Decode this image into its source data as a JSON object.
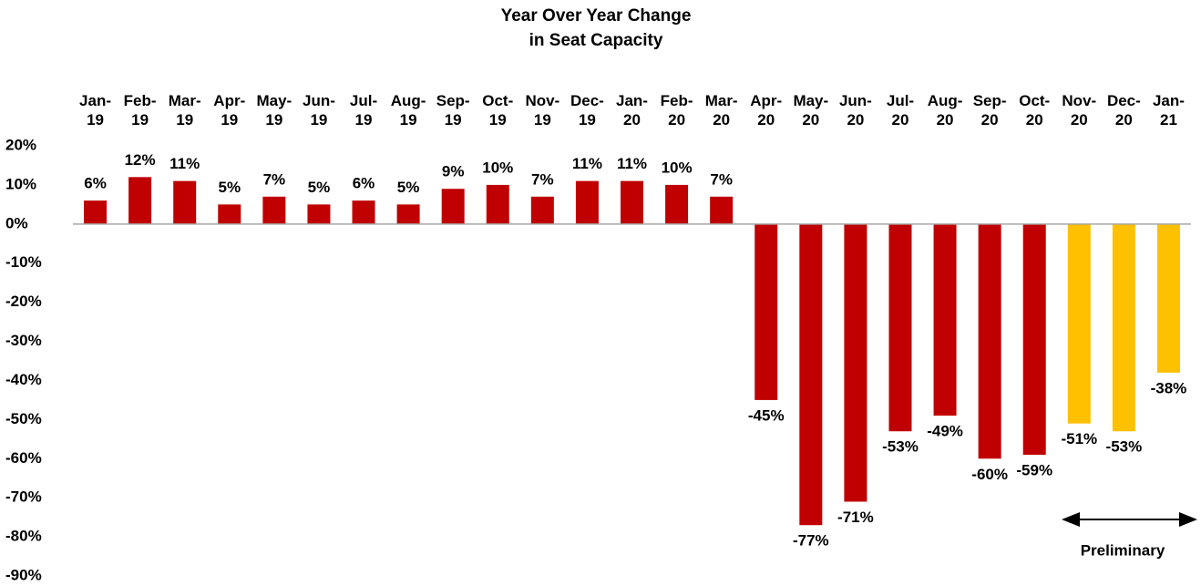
{
  "chart_data": {
    "type": "bar",
    "title": [
      "Year Over Year Change",
      "in Seat Capacity"
    ],
    "categories": [
      "Jan-19",
      "Feb-19",
      "Mar-19",
      "Apr-19",
      "May-19",
      "Jun-19",
      "Jul-19",
      "Aug-19",
      "Sep-19",
      "Oct-19",
      "Nov-19",
      "Dec-19",
      "Jan-20",
      "Feb-20",
      "Mar-20",
      "Apr-20",
      "May-20",
      "Jun-20",
      "Jul-20",
      "Aug-20",
      "Sep-20",
      "Oct-20",
      "Nov-20",
      "Dec-20",
      "Jan-21"
    ],
    "values": [
      6,
      12,
      11,
      5,
      7,
      5,
      6,
      5,
      9,
      10,
      7,
      11,
      11,
      10,
      7,
      -45,
      -77,
      -71,
      -53,
      -49,
      -60,
      -59,
      -51,
      -53,
      -38
    ],
    "value_labels": [
      "6%",
      "12%",
      "11%",
      "5%",
      "7%",
      "5%",
      "6%",
      "5%",
      "9%",
      "10%",
      "7%",
      "11%",
      "11%",
      "10%",
      "7%",
      "-45%",
      "-77%",
      "-71%",
      "-53%",
      "-49%",
      "-60%",
      "-59%",
      "-51%",
      "-53%",
      "-38%"
    ],
    "colors": [
      "#c00000",
      "#c00000",
      "#c00000",
      "#c00000",
      "#c00000",
      "#c00000",
      "#c00000",
      "#c00000",
      "#c00000",
      "#c00000",
      "#c00000",
      "#c00000",
      "#c00000",
      "#c00000",
      "#c00000",
      "#c00000",
      "#c00000",
      "#c00000",
      "#c00000",
      "#c00000",
      "#c00000",
      "#c00000",
      "#ffc000",
      "#ffc000",
      "#ffc000"
    ],
    "ylim": [
      -90,
      20
    ],
    "yticks": [
      {
        "value": 20,
        "label": "20%"
      },
      {
        "value": 10,
        "label": "10%"
      },
      {
        "value": 0,
        "label": "0%"
      },
      {
        "value": -10,
        "label": "-10%"
      },
      {
        "value": -20,
        "label": "-20%"
      },
      {
        "value": -30,
        "label": "-30%"
      },
      {
        "value": -40,
        "label": "-40%"
      },
      {
        "value": -50,
        "label": "-50%"
      },
      {
        "value": -60,
        "label": "-60%"
      },
      {
        "value": -70,
        "label": "-70%"
      },
      {
        "value": -80,
        "label": "-80%"
      },
      {
        "value": -90,
        "label": "-90%"
      }
    ],
    "grid": false,
    "annotation": "Preliminary"
  }
}
